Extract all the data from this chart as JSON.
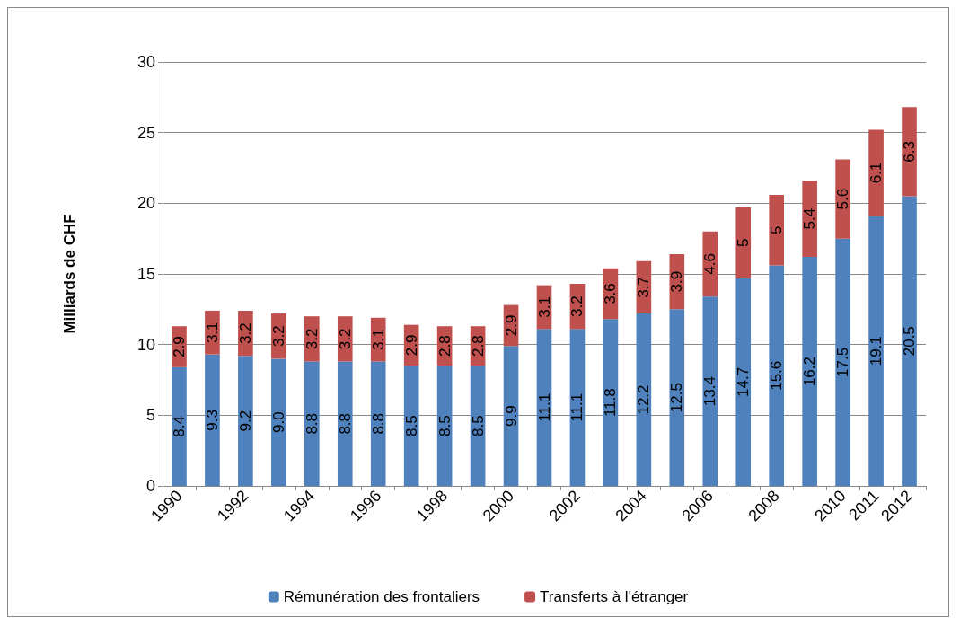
{
  "chart_data": {
    "type": "bar",
    "ylabel": "Milliards de CHF",
    "categories": [
      "1990",
      null,
      "1992",
      null,
      "1994",
      null,
      "1996",
      null,
      "1998",
      null,
      "2000",
      null,
      "2002",
      null,
      "2004",
      null,
      "2006",
      null,
      "2008",
      null,
      "2010",
      "2011",
      "2012"
    ],
    "stacked": true,
    "ylim": [
      0,
      30
    ],
    "yticks": [
      0,
      5,
      10,
      15,
      20,
      25,
      30
    ],
    "grid": "y",
    "legend": "bottom",
    "series": [
      {
        "name": "Rémunération des frontaliers",
        "color": "#4f81bd",
        "values": [
          8.4,
          9.3,
          9.2,
          9.0,
          8.8,
          8.8,
          8.8,
          8.5,
          8.5,
          8.5,
          9.9,
          11.1,
          11.1,
          11.8,
          12.2,
          12.5,
          13.4,
          14.7,
          15.6,
          16.2,
          17.5,
          19.1,
          20.5
        ],
        "value_labels": [
          "8.4",
          "9.3",
          "9.2",
          "9.0",
          "8.8",
          "8.8",
          "8.8",
          "8.5",
          "8.5",
          "8.5",
          "9.9",
          "11.1",
          "11.1",
          "11.8",
          "12.2",
          "12.5",
          "13.4",
          "14.7",
          "15.6",
          "16.2",
          "17.5",
          "19.1",
          "20.5"
        ]
      },
      {
        "name": "Transferts à l'étranger",
        "color": "#c0504d",
        "values": [
          2.9,
          3.1,
          3.2,
          3.2,
          3.2,
          3.2,
          3.1,
          2.9,
          2.8,
          2.8,
          2.9,
          3.1,
          3.2,
          3.6,
          3.7,
          3.9,
          4.6,
          5,
          5,
          5.4,
          5.6,
          6.1,
          6.3
        ],
        "value_labels": [
          "2.9",
          "3.1",
          "3.2",
          "3.2",
          "3.2",
          "3.2",
          "3.1",
          "2.9",
          "2.8",
          "2.8",
          "2.9",
          "3.1",
          "3.2",
          "3.6",
          "3.7",
          "3.9",
          "4.6",
          "5",
          "5",
          "5.4",
          "5.6",
          "6.1",
          "6.3"
        ]
      }
    ]
  }
}
